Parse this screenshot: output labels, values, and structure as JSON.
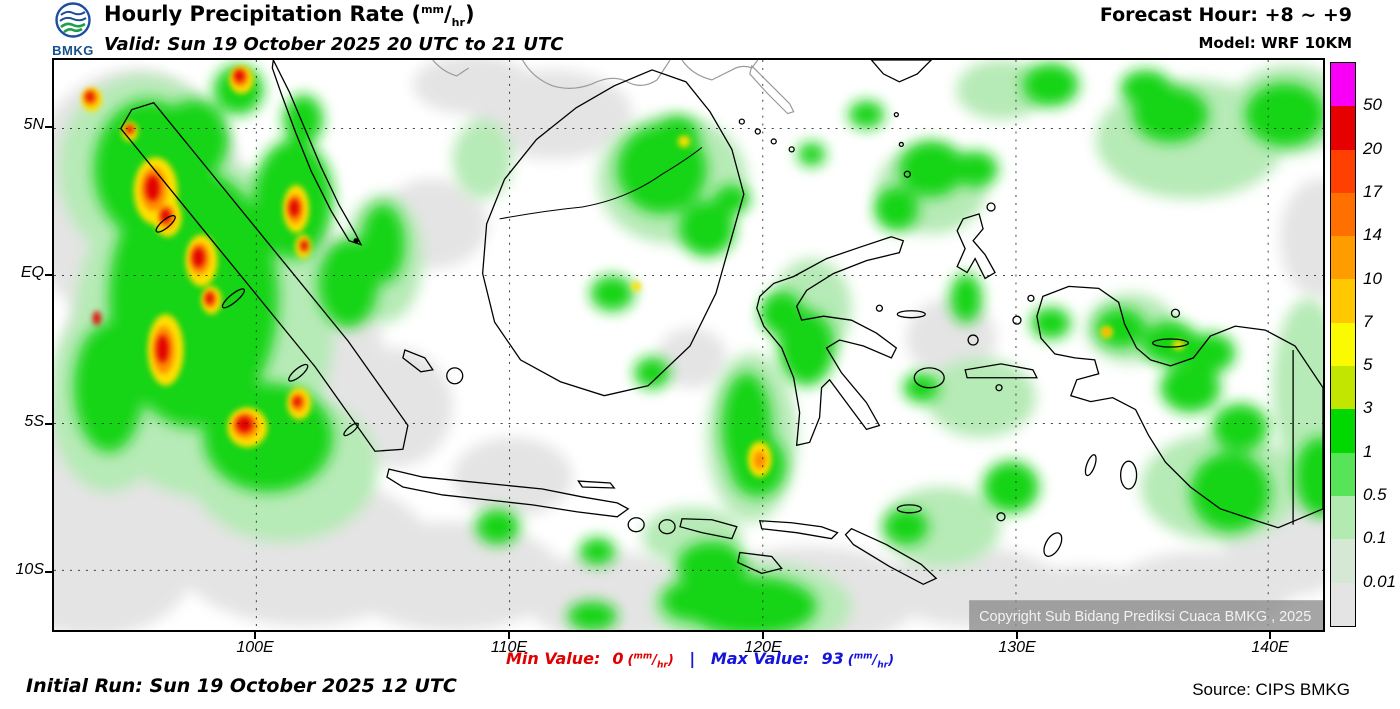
{
  "header": {
    "title_text": "Hourly Precipitation Rate",
    "valid_line": "Valid: Sun 19 October 2025 20 UTC to 21 UTC",
    "forecast_hour": "Forecast Hour: +8 ~ +9",
    "model": "Model: WRF 10KM",
    "logo_label": "BMKG"
  },
  "units": {
    "open": "(",
    "sup": "mm",
    "slash": "/",
    "sub": "hr",
    "close": ")"
  },
  "map": {
    "lat_labels": [
      "5N",
      "EQ",
      "5S",
      "10S"
    ],
    "lon_labels": [
      "100E",
      "110E",
      "120E",
      "130E",
      "140E"
    ],
    "copyright": "Copyright Sub Bidang Prediksi Cuaca BMKG , 2025"
  },
  "legend": {
    "values": [
      "50",
      "20",
      "17",
      "14",
      "10",
      "7",
      "5",
      "3",
      "1",
      "0.5",
      "0.1",
      "0.01"
    ],
    "colors": [
      "#f800f8",
      "#e60000",
      "#ff4000",
      "#ff7000",
      "#ff9c00",
      "#ffc800",
      "#fafa00",
      "#c3e600",
      "#00d800",
      "#58e458",
      "#b2eab2",
      "#d4e8d4",
      "#e4e4e4"
    ]
  },
  "footer": {
    "min_label": "Min Value:",
    "min_value": "0",
    "separator": "|",
    "max_label": "Max Value:",
    "max_value": "93",
    "initial_run": "Initial Run: Sun 19 October 2025 12 UTC",
    "source": "Source: CIPS BMKG"
  },
  "colors": {
    "min_text": "#e10000",
    "max_text": "#1414dc"
  }
}
